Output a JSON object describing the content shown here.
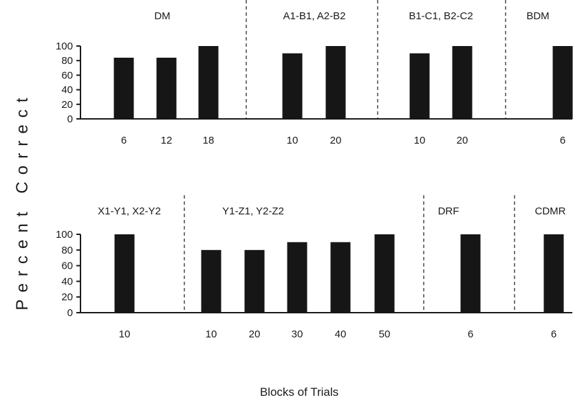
{
  "ylabel": "Percent Correct",
  "xlabel": "Blocks of Trials",
  "chart_data": [
    {
      "type": "bar",
      "ylim": [
        0,
        100
      ],
      "yticks": [
        0,
        20,
        40,
        60,
        80,
        100
      ],
      "phases": [
        {
          "label": "DM",
          "bars": [
            {
              "x": "6",
              "value": 84
            },
            {
              "x": "12",
              "value": 84
            },
            {
              "x": "18",
              "value": 100
            }
          ]
        },
        {
          "label": "A1-B1, A2-B2",
          "bars": [
            {
              "x": "10",
              "value": 90
            },
            {
              "x": "20",
              "value": 100
            }
          ]
        },
        {
          "label": "B1-C1, B2-C2",
          "bars": [
            {
              "x": "10",
              "value": 90
            },
            {
              "x": "20",
              "value": 100
            }
          ]
        },
        {
          "label": "BDM",
          "bars": [
            {
              "x": "6",
              "value": 100
            }
          ]
        }
      ]
    },
    {
      "type": "bar",
      "ylim": [
        0,
        100
      ],
      "yticks": [
        0,
        20,
        40,
        60,
        80,
        100
      ],
      "phases": [
        {
          "label": "X1-Y1, X2-Y2",
          "bars": [
            {
              "x": "10",
              "value": 100
            }
          ]
        },
        {
          "label": "Y1-Z1, Y2-Z2",
          "bars": [
            {
              "x": "10",
              "value": 80
            },
            {
              "x": "20",
              "value": 80
            },
            {
              "x": "30",
              "value": 90
            },
            {
              "x": "40",
              "value": 90
            },
            {
              "x": "50",
              "value": 100
            }
          ]
        },
        {
          "label": "DRF",
          "bars": [
            {
              "x": "6",
              "value": 100
            }
          ]
        },
        {
          "label": "CDMR",
          "bars": [
            {
              "x": "6",
              "value": 100
            }
          ]
        }
      ]
    }
  ]
}
